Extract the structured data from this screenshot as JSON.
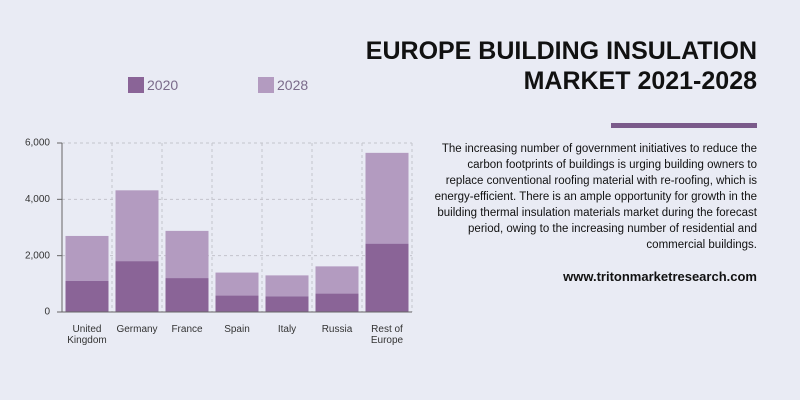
{
  "chart_data": {
    "type": "bar",
    "title": "EUROPE BUILDING INSULATION MARKET 2021-2028",
    "description": "The increasing number of government initiatives to reduce the carbon footprints of buildings is urging building owners to replace conventional roofing material with re-roofing, which is energy-efficient. There is an ample opportunity for growth in the building thermal insulation materials market during the forecast period, owing to the increasing number of residential and commercial buildings.",
    "website": "www.tritonmarketresearch.com",
    "categories": [
      "United Kingdom",
      "Germany",
      "France",
      "Spain",
      "Italy",
      "Russia",
      "Rest of Europe"
    ],
    "series": [
      {
        "name": "2020",
        "color": "#8a6497",
        "values": [
          1100,
          1800,
          1200,
          580,
          550,
          650,
          2420
        ]
      },
      {
        "name": "2028",
        "color": "#b39bc0",
        "values": [
          2700,
          4320,
          2880,
          1400,
          1300,
          1620,
          5650
        ]
      }
    ],
    "ylim": [
      0,
      6000
    ],
    "yticks": [
      0,
      {
        "value": 2000,
        "label": "2,000"
      },
      {
        "value": 4000,
        "label": "4,000"
      },
      {
        "value": 6000,
        "label": "6,000"
      }
    ],
    "grid": true
  }
}
